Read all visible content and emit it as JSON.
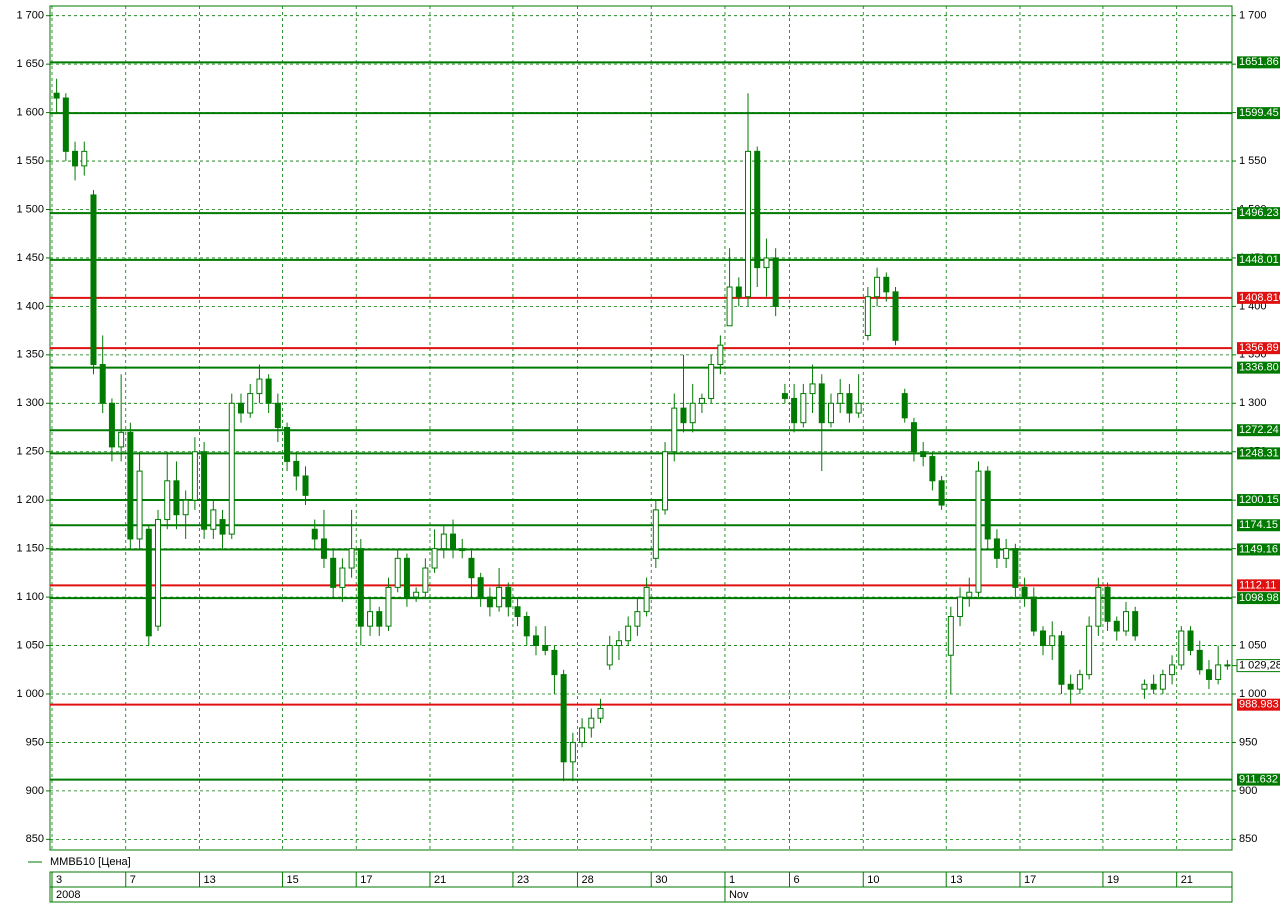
{
  "chart_data": {
    "type": "candlestick",
    "legend": "ММВБ10 [Цена]",
    "color": "#007a00",
    "grid": true,
    "ylim": [
      839,
      1710
    ],
    "yticks": [
      {
        "value": 1700,
        "label": "1 700"
      },
      {
        "value": 1650,
        "label": "1 650"
      },
      {
        "value": 1600,
        "label": "1 600"
      },
      {
        "value": 1550,
        "label": "1 550"
      },
      {
        "value": 1500,
        "label": "1 500"
      },
      {
        "value": 1450,
        "label": "1 450"
      },
      {
        "value": 1400,
        "label": "1 400"
      },
      {
        "value": 1350,
        "label": "1 350"
      },
      {
        "value": 1300,
        "label": "1 300"
      },
      {
        "value": 1250,
        "label": "1 250"
      },
      {
        "value": 1200,
        "label": "1 200"
      },
      {
        "value": 1150,
        "label": "1 150"
      },
      {
        "value": 1100,
        "label": "1 100"
      },
      {
        "value": 1050,
        "label": "1 050"
      },
      {
        "value": 1000,
        "label": "1 000"
      },
      950,
      900,
      850
    ],
    "xticks": [
      {
        "value": 0,
        "label": "3"
      },
      {
        "value": 8,
        "label": "7"
      },
      {
        "value": 16,
        "label": "13"
      },
      {
        "value": 25,
        "label": "15"
      },
      {
        "value": 33,
        "label": "17"
      },
      {
        "value": 41,
        "label": "21"
      },
      {
        "value": 50,
        "label": "23"
      },
      {
        "value": 57,
        "label": "28"
      },
      {
        "value": 65,
        "label": "30"
      },
      {
        "value": 73,
        "label": "1"
      },
      {
        "value": 80,
        "label": "6"
      },
      {
        "value": 88,
        "label": "10"
      },
      {
        "value": 97,
        "label": "13"
      },
      {
        "value": 105,
        "label": "17"
      },
      {
        "value": 114,
        "label": "19"
      },
      {
        "value": 122,
        "label": "21"
      }
    ],
    "xticks_row2": [
      {
        "value": 0,
        "label": "2008"
      },
      {
        "value": 73,
        "label": "Nov"
      }
    ],
    "last_price": {
      "value": 1029.28,
      "label": "1 029,28"
    },
    "levels": [
      {
        "value": 1651.86,
        "label": "1651.86",
        "color": "#007a00"
      },
      {
        "value": 1599.45,
        "label": "1599.45",
        "color": "#007a00"
      },
      {
        "value": 1496.23,
        "label": "1496.23",
        "color": "#007a00"
      },
      {
        "value": 1448.01,
        "label": "1448.01",
        "color": "#007a00"
      },
      {
        "value": 1408.81,
        "label": "1408.810",
        "color": "#e01010"
      },
      {
        "value": 1356.89,
        "label": "1356.89",
        "color": "#e01010"
      },
      {
        "value": 1336.8,
        "label": "1336.80",
        "color": "#007a00"
      },
      {
        "value": 1272.24,
        "label": "1272.24",
        "color": "#007a00"
      },
      {
        "value": 1248.31,
        "label": "1248.31",
        "color": "#007a00"
      },
      {
        "value": 1200.15,
        "label": "1200.15",
        "color": "#007a00"
      },
      {
        "value": 1174.15,
        "label": "1174.15",
        "color": "#007a00"
      },
      {
        "value": 1149.16,
        "label": "1149.16",
        "color": "#007a00"
      },
      {
        "value": 1112.11,
        "label": "1112.11",
        "color": "#e01010"
      },
      {
        "value": 1098.98,
        "label": "1098.98",
        "color": "#007a00"
      },
      {
        "value": 988.983,
        "label": "988.983",
        "color": "#e01010"
      },
      {
        "value": 911.632,
        "label": "911.632",
        "color": "#007a00"
      }
    ],
    "open": [
      1620,
      1615,
      1560,
      1545,
      1515,
      1340,
      1300,
      1255,
      1270,
      1160,
      1170,
      1070,
      1180,
      1220,
      1185,
      1200,
      1250,
      1170,
      1180,
      1165,
      1300,
      1290,
      1310,
      1325,
      1300,
      1275,
      1240,
      1225,
      1170,
      1160,
      1140,
      1110,
      1130,
      1150,
      1070,
      1085,
      1070,
      1110,
      1140,
      1100,
      1105,
      1130,
      1150,
      1165,
      1150,
      1140,
      1120,
      1100,
      1090,
      1110,
      1090,
      1080,
      1060,
      1050,
      1045,
      1020,
      930,
      950,
      965,
      975,
      1030,
      1050,
      1055,
      1070,
      1085,
      1140,
      1190,
      1250,
      1295,
      1280,
      1300,
      1305,
      1340,
      1380,
      1420,
      1410,
      1560,
      1440,
      1450,
      1310,
      1305,
      1280,
      1310,
      1320,
      1280,
      1300,
      1310,
      1290,
      1370,
      1410,
      1430,
      1415,
      1310,
      1280,
      1250,
      1245,
      1220,
      1040,
      1080,
      1100,
      1105,
      1230,
      1160,
      1140,
      1150,
      1110,
      1100,
      1065,
      1050,
      1060,
      1010,
      1005,
      1020,
      1070,
      1110,
      1075,
      1065,
      1085,
      1005,
      1010,
      1005,
      1020,
      1030,
      1065,
      1045,
      1025,
      1015,
      1030
    ],
    "high": [
      1635,
      1620,
      1570,
      1570,
      1520,
      1370,
      1305,
      1330,
      1280,
      1250,
      1175,
      1190,
      1250,
      1240,
      1210,
      1265,
      1260,
      1200,
      1190,
      1310,
      1310,
      1320,
      1340,
      1330,
      1310,
      1280,
      1250,
      1235,
      1180,
      1190,
      1150,
      1140,
      1190,
      1160,
      1100,
      1090,
      1120,
      1150,
      1145,
      1110,
      1140,
      1170,
      1175,
      1180,
      1160,
      1148,
      1125,
      1110,
      1130,
      1115,
      1100,
      1085,
      1070,
      1070,
      1050,
      1025,
      960,
      975,
      985,
      995,
      1060,
      1065,
      1080,
      1100,
      1120,
      1200,
      1260,
      1310,
      1350,
      1320,
      1310,
      1350,
      1370,
      1460,
      1430,
      1620,
      1565,
      1470,
      1460,
      1320,
      1320,
      1320,
      1340,
      1330,
      1310,
      1325,
      1320,
      1330,
      1420,
      1440,
      1435,
      1420,
      1315,
      1285,
      1260,
      1250,
      1225,
      1090,
      1110,
      1120,
      1240,
      1235,
      1170,
      1160,
      1155,
      1120,
      1110,
      1070,
      1075,
      1065,
      1020,
      1025,
      1080,
      1120,
      1115,
      1080,
      1095,
      1090,
      1015,
      1020,
      1025,
      1040,
      1070,
      1070,
      1055,
      1035,
      1050,
      1035
    ],
    "low": [
      1600,
      1550,
      1530,
      1535,
      1330,
      1290,
      1240,
      1240,
      1150,
      1150,
      1050,
      1065,
      1170,
      1170,
      1160,
      1190,
      1160,
      1160,
      1150,
      1160,
      1280,
      1285,
      1300,
      1290,
      1260,
      1230,
      1210,
      1195,
      1150,
      1130,
      1100,
      1095,
      1120,
      1050,
      1060,
      1060,
      1065,
      1105,
      1090,
      1095,
      1100,
      1125,
      1140,
      1140,
      1140,
      1100,
      1090,
      1080,
      1085,
      1080,
      1070,
      1050,
      1040,
      1040,
      1000,
      910,
      910,
      945,
      955,
      970,
      1025,
      1035,
      1050,
      1060,
      1080,
      1130,
      1185,
      1240,
      1270,
      1270,
      1290,
      1300,
      1330,
      1380,
      1400,
      1400,
      1420,
      1410,
      1390,
      1300,
      1270,
      1275,
      1290,
      1230,
      1275,
      1290,
      1280,
      1285,
      1365,
      1400,
      1405,
      1360,
      1280,
      1240,
      1235,
      1210,
      1190,
      1000,
      1070,
      1090,
      1100,
      1150,
      1130,
      1130,
      1100,
      1090,
      1060,
      1040,
      1035,
      1000,
      990,
      1000,
      1015,
      1060,
      1065,
      1055,
      1060,
      1055,
      995,
      1000,
      1000,
      1010,
      1025,
      1040,
      1020,
      1005,
      1010,
      1025
    ],
    "close": [
      1615,
      1560,
      1545,
      1560,
      1340,
      1300,
      1255,
      1270,
      1160,
      1230,
      1060,
      1180,
      1220,
      1185,
      1200,
      1250,
      1170,
      1190,
      1165,
      1300,
      1290,
      1310,
      1325,
      1300,
      1275,
      1240,
      1225,
      1205,
      1160,
      1140,
      1110,
      1130,
      1150,
      1070,
      1085,
      1070,
      1110,
      1140,
      1100,
      1105,
      1130,
      1150,
      1165,
      1150,
      1148,
      1120,
      1100,
      1090,
      1110,
      1090,
      1080,
      1060,
      1050,
      1045,
      1020,
      930,
      950,
      965,
      975,
      985,
      1050,
      1055,
      1070,
      1085,
      1110,
      1190,
      1250,
      1295,
      1280,
      1300,
      1305,
      1340,
      1360,
      1420,
      1410,
      1560,
      1440,
      1450,
      1400,
      1305,
      1280,
      1310,
      1320,
      1280,
      1300,
      1310,
      1290,
      1300,
      1410,
      1430,
      1415,
      1365,
      1285,
      1250,
      1245,
      1220,
      1195,
      1080,
      1100,
      1105,
      1230,
      1160,
      1140,
      1150,
      1110,
      1100,
      1065,
      1050,
      1060,
      1010,
      1005,
      1020,
      1070,
      1110,
      1075,
      1065,
      1085,
      1060,
      1010,
      1005,
      1020,
      1030,
      1065,
      1045,
      1025,
      1015,
      1030,
      1029.28
    ]
  }
}
